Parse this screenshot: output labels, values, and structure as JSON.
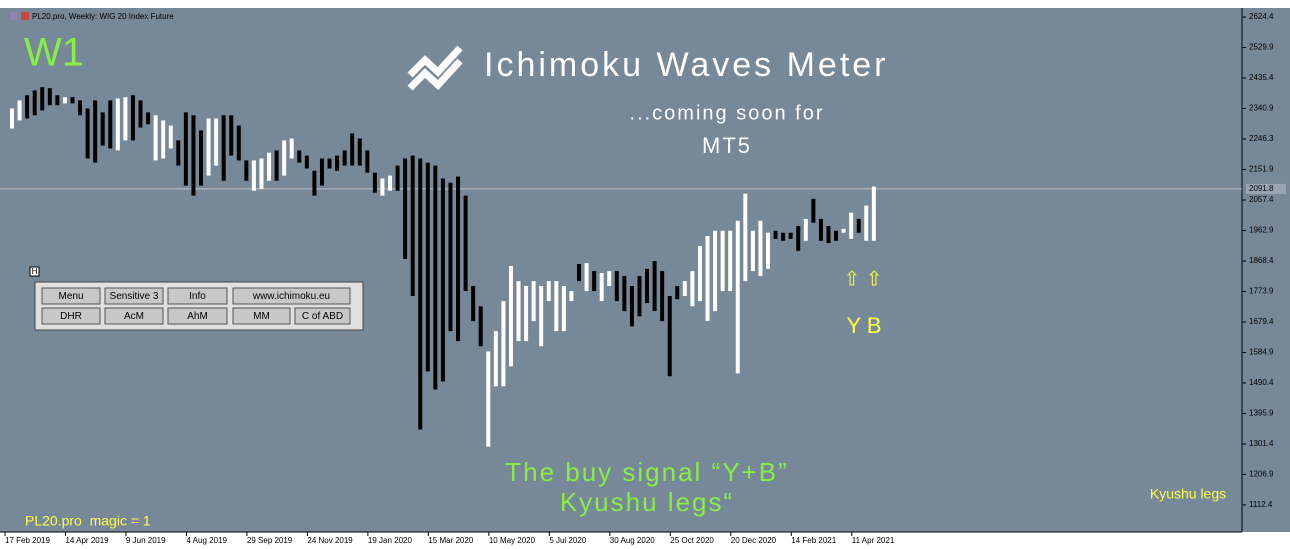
{
  "window_title": "PL20.pro, Weekly:  WIG 20 Index Future",
  "chart_data": {
    "type": "range_bar",
    "high": [
      2341,
      2366,
      2382,
      2397,
      2407,
      2404,
      2382,
      2376,
      2376,
      2366,
      2341,
      2366,
      2329,
      2366,
      2372,
      2376,
      2382,
      2366,
      2329,
      2320,
      2304,
      2288,
      2242,
      2329,
      2320,
      2273,
      2310,
      2310,
      2320,
      2320,
      2288,
      2180,
      2180,
      2186,
      2204,
      2211,
      2242,
      2248,
      2211,
      2195,
      2148,
      2186,
      2186,
      2195,
      2211,
      2264,
      2248,
      2211,
      2142,
      2124,
      2133,
      2164,
      2186,
      2195,
      2186,
      2173,
      2164,
      2124,
      2111,
      2130,
      2071,
      1791,
      1728,
      1588,
      1651,
      1744,
      1853,
      1806,
      1791,
      1806,
      1791,
      1806,
      1806,
      1791,
      1775,
      1859,
      1862,
      1837,
      1831,
      1837,
      1837,
      1822,
      1791,
      1822,
      1844,
      1868,
      1837,
      1760,
      1791,
      1806,
      1837,
      1915,
      1946,
      1962,
      1962,
      1962,
      1993,
      2077,
      1962,
      1993,
      1956,
      1962,
      1956,
      1956,
      1977,
      1999,
      2061,
      1999,
      1977,
      1962,
      1968,
      2018,
      1999,
      2040,
      2099
    ],
    "low": [
      2279,
      2304,
      2310,
      2320,
      2335,
      2351,
      2351,
      2357,
      2357,
      2320,
      2186,
      2173,
      2226,
      2217,
      2211,
      2242,
      2242,
      2282,
      2292,
      2180,
      2186,
      2217,
      2164,
      2102,
      2071,
      2102,
      2133,
      2164,
      2117,
      2195,
      2180,
      2117,
      2086,
      2092,
      2117,
      2117,
      2133,
      2186,
      2173,
      2155,
      2071,
      2102,
      2155,
      2148,
      2164,
      2164,
      2164,
      2142,
      2080,
      2071,
      2086,
      2086,
      1875,
      1760,
      1346,
      1526,
      1470,
      1495,
      1651,
      1620,
      1775,
      1682,
      1604,
      1293,
      1480,
      1480,
      1542,
      1620,
      1620,
      1682,
      1604,
      1744,
      1651,
      1651,
      1744,
      1806,
      1775,
      1775,
      1744,
      1791,
      1744,
      1713,
      1666,
      1697,
      1738,
      1713,
      1682,
      1511,
      1750,
      1760,
      1728,
      1744,
      1682,
      1713,
      1775,
      1775,
      1520,
      1806,
      1837,
      1822,
      1844,
      1937,
      1931,
      1937,
      1900,
      1931,
      1987,
      1931,
      1924,
      1931,
      1956,
      1937,
      1956,
      1931,
      1931
    ],
    "up": [
      true,
      true,
      false,
      false,
      false,
      false,
      false,
      true,
      false,
      false,
      false,
      false,
      false,
      false,
      true,
      true,
      false,
      false,
      false,
      true,
      true,
      true,
      false,
      false,
      false,
      false,
      true,
      true,
      false,
      false,
      false,
      false,
      true,
      true,
      true,
      false,
      true,
      true,
      false,
      false,
      false,
      false,
      false,
      false,
      false,
      false,
      false,
      false,
      false,
      true,
      true,
      false,
      false,
      false,
      false,
      false,
      false,
      false,
      false,
      false,
      false,
      false,
      false,
      true,
      true,
      true,
      true,
      true,
      true,
      true,
      true,
      true,
      true,
      true,
      true,
      false,
      true,
      false,
      true,
      true,
      false,
      false,
      false,
      false,
      false,
      false,
      false,
      false,
      false,
      true,
      true,
      true,
      true,
      true,
      true,
      true,
      true,
      true,
      true,
      true,
      true,
      false,
      false,
      false,
      false,
      true,
      false,
      false,
      false,
      false,
      true,
      true,
      false,
      true,
      true
    ],
    "up_color": "#ffffff",
    "down_color": "#000000",
    "ylim": [
      1028.5,
      2652.4
    ],
    "yticks": [
      2624.4,
      2529.9,
      2435.4,
      2340.9,
      2246.3,
      2151.9,
      2057.4,
      1962.9,
      1868.4,
      1773.9,
      1679.4,
      1584.9,
      1490.4,
      1395.9,
      1301.4,
      1206.9,
      1112.4
    ],
    "current_price": 2091.8,
    "x_labels": [
      "17 Feb 2019",
      "14 Apr 2019",
      "9 Jun 2019",
      "4 Aug 2019",
      "29 Sep 2019",
      "24 Nov 2019",
      "19 Jan 2020",
      "15 Mar 2020",
      "10 May 2020",
      "5 Jul 2020",
      "30 Aug 2020",
      "25 Oct 2020",
      "20 Dec 2020",
      "14 Feb 2021",
      "11 Apr 2021"
    ]
  },
  "overlay": {
    "timeframe": "W1",
    "logo": "Ichimoku Waves Meter",
    "subtitle": "...coming soon for",
    "platform": "MT5",
    "arrows": "⇧ ⇧",
    "signal_letters": "Y B",
    "message": [
      "The buy signal “Y+B”",
      "Kyushu legs“"
    ],
    "legend_label": "Kyushu legs",
    "magic": "PL20.pro  magic = 1"
  },
  "panel": {
    "toggle": "H",
    "buttons": [
      [
        "Menu",
        "Sensitive 3",
        "Info",
        "www.ichimoku.eu"
      ],
      [
        "DHR",
        "AcM",
        "AhM",
        "MM",
        "C of ABD"
      ]
    ]
  }
}
